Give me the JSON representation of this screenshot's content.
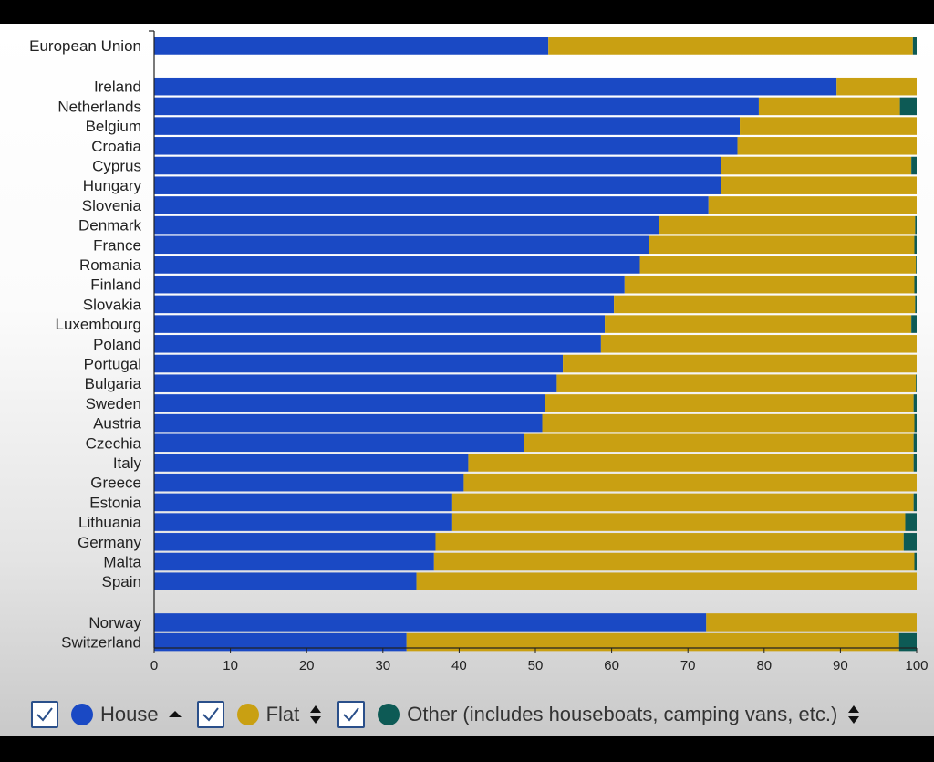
{
  "chart_data": {
    "type": "bar",
    "orientation": "horizontal",
    "stacked": true,
    "categories": [
      "European Union",
      "Ireland",
      "Netherlands",
      "Belgium",
      "Croatia",
      "Cyprus",
      "Hungary",
      "Slovenia",
      "Denmark",
      "France",
      "Romania",
      "Finland",
      "Slovakia",
      "Luxembourg",
      "Poland",
      "Portugal",
      "Bulgaria",
      "Sweden",
      "Austria",
      "Czechia",
      "Italy",
      "Greece",
      "Estonia",
      "Lithuania",
      "Germany",
      "Malta",
      "Spain",
      "Norway",
      "Switzerland"
    ],
    "groups": [
      [
        "European Union"
      ],
      [
        "Ireland",
        "Netherlands",
        "Belgium",
        "Croatia",
        "Cyprus",
        "Hungary",
        "Slovenia",
        "Denmark",
        "France",
        "Romania",
        "Finland",
        "Slovakia",
        "Luxembourg",
        "Poland",
        "Portugal",
        "Bulgaria",
        "Sweden",
        "Austria",
        "Czechia",
        "Italy",
        "Greece",
        "Estonia",
        "Lithuania",
        "Germany",
        "Malta",
        "Spain"
      ],
      [
        "Norway",
        "Switzerland"
      ]
    ],
    "series": [
      {
        "name": "House",
        "color": "#1a49c4",
        "values": [
          51.7,
          89.5,
          79.3,
          76.8,
          76.5,
          74.3,
          74.3,
          72.7,
          66.2,
          64.9,
          63.7,
          61.7,
          60.3,
          59.1,
          58.6,
          53.6,
          52.8,
          51.3,
          50.9,
          48.5,
          41.2,
          40.6,
          39.1,
          39.1,
          36.9,
          36.7,
          34.4,
          72.4,
          33.1
        ]
      },
      {
        "name": "Flat",
        "color": "#c9a012",
        "values": [
          47.8,
          10.5,
          18.5,
          23.2,
          23.5,
          25.0,
          25.7,
          27.3,
          33.6,
          34.8,
          36.2,
          38.0,
          39.5,
          40.2,
          41.4,
          46.4,
          47.1,
          48.3,
          48.8,
          51.1,
          58.4,
          59.4,
          60.5,
          59.4,
          61.4,
          63.0,
          65.6,
          27.6,
          64.6
        ]
      },
      {
        "name": "Other (includes houseboats, camping vans, etc.)",
        "color": "#0d5a55",
        "values": [
          0.5,
          0.0,
          2.2,
          0.0,
          0.0,
          0.7,
          0.0,
          0.0,
          0.2,
          0.3,
          0.1,
          0.3,
          0.2,
          0.7,
          0.0,
          0.0,
          0.1,
          0.4,
          0.3,
          0.4,
          0.4,
          0.0,
          0.4,
          1.5,
          1.7,
          0.3,
          0.0,
          0.0,
          2.3
        ]
      }
    ],
    "x_ticks": [
      "0",
      "10",
      "20",
      "30",
      "40",
      "50",
      "60",
      "70",
      "80",
      "90",
      "100"
    ],
    "xlim": [
      0,
      100
    ],
    "grid": false,
    "legend_position": "bottom-left",
    "xlabel": "",
    "ylabel": "",
    "title": ""
  },
  "legend": {
    "items": [
      {
        "label": "House",
        "checked": true,
        "sort_icon": "sort-asc-icon"
      },
      {
        "label": "Flat",
        "checked": true,
        "sort_icon": "sort-both-icon"
      },
      {
        "label": "Other (includes houseboats, camping vans, etc.)",
        "checked": true,
        "sort_icon": "sort-both-icon"
      }
    ]
  }
}
